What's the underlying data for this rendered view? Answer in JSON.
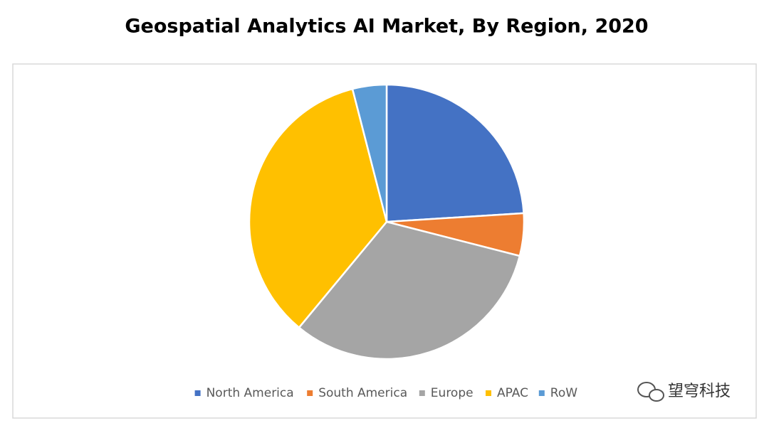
{
  "chart_data": {
    "type": "pie",
    "title": "Geospatial Analytics AI Market, By Region, 2020",
    "categories": [
      "North America",
      "South America",
      "Europe",
      "APAC",
      "RoW"
    ],
    "values": [
      24,
      5,
      32,
      35,
      4
    ],
    "colors": [
      "#4472c4",
      "#ed7d31",
      "#a5a5a5",
      "#ffc000",
      "#5b9bd5"
    ],
    "legend": "bottom"
  },
  "watermark": "望穹科技"
}
